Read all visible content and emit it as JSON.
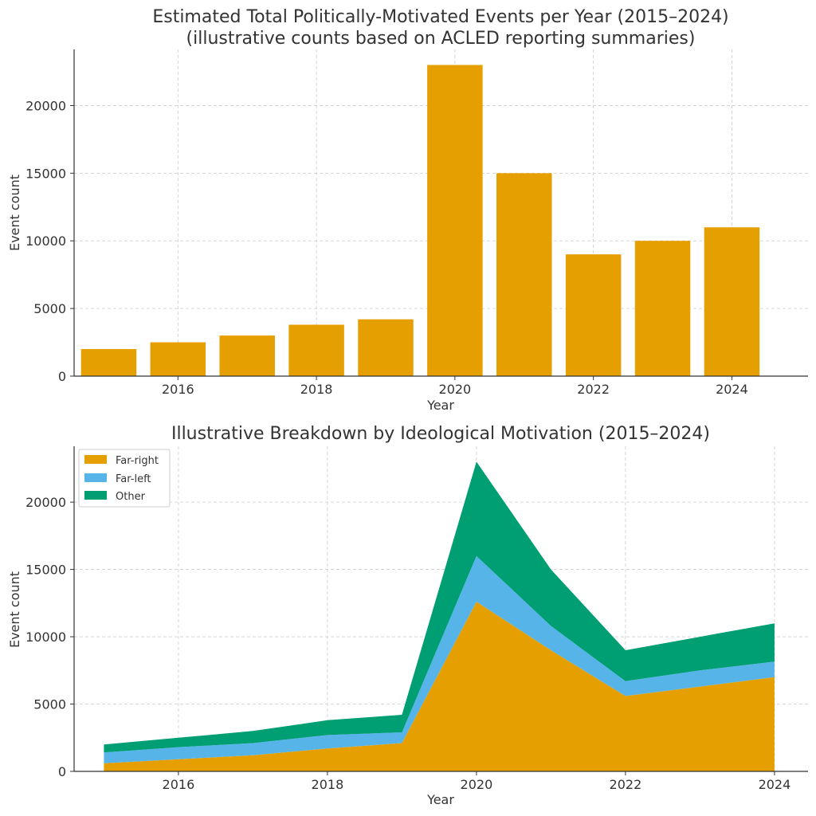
{
  "chart_data": [
    {
      "type": "bar",
      "title": "Estimated Total Politically-Motivated Events per Year (2015–2024)",
      "subtitle": "(illustrative counts based on ACLED reporting summaries)",
      "xlabel": "Year",
      "ylabel": "Event count",
      "x": [
        2015,
        2016,
        2017,
        2018,
        2019,
        2020,
        2021,
        2022,
        2023,
        2024
      ],
      "values": [
        2000,
        2500,
        3000,
        3800,
        4200,
        23000,
        15000,
        9000,
        10000,
        11000
      ],
      "xticks": [
        "2016",
        "2018",
        "2020",
        "2022",
        "2024"
      ],
      "yticks": [
        "0",
        "5000",
        "10000",
        "15000",
        "20000"
      ],
      "xlim": [
        2014.5,
        2025.1
      ],
      "ylim": [
        0,
        24150
      ],
      "grid": true,
      "color": "#E69F00"
    },
    {
      "type": "area",
      "title": "Illustrative Breakdown by Ideological Motivation (2015–2024)",
      "xlabel": "Year",
      "ylabel": "Event count",
      "stacked": true,
      "x": [
        2015,
        2016,
        2017,
        2018,
        2019,
        2020,
        2021,
        2022,
        2023,
        2024
      ],
      "series": [
        {
          "name": "Far-right",
          "color": "#E69F00",
          "values": [
            600,
            900,
            1200,
            1700,
            2100,
            12600,
            9000,
            5600,
            6300,
            7000
          ]
        },
        {
          "name": "Far-left",
          "color": "#56B4E9",
          "values": [
            800,
            900,
            900,
            1000,
            800,
            3400,
            1800,
            1100,
            1200,
            1150
          ]
        },
        {
          "name": "Other",
          "color": "#009E73",
          "values": [
            600,
            700,
            900,
            1100,
            1300,
            7000,
            4200,
            2300,
            2500,
            2850
          ]
        }
      ],
      "xticks": [
        "2016",
        "2018",
        "2020",
        "2022",
        "2024"
      ],
      "yticks": [
        "0",
        "5000",
        "10000",
        "15000",
        "20000"
      ],
      "xlim": [
        2014.6,
        2024.45
      ],
      "ylim": [
        0,
        24150
      ],
      "grid": true,
      "legend": "top-left"
    }
  ]
}
